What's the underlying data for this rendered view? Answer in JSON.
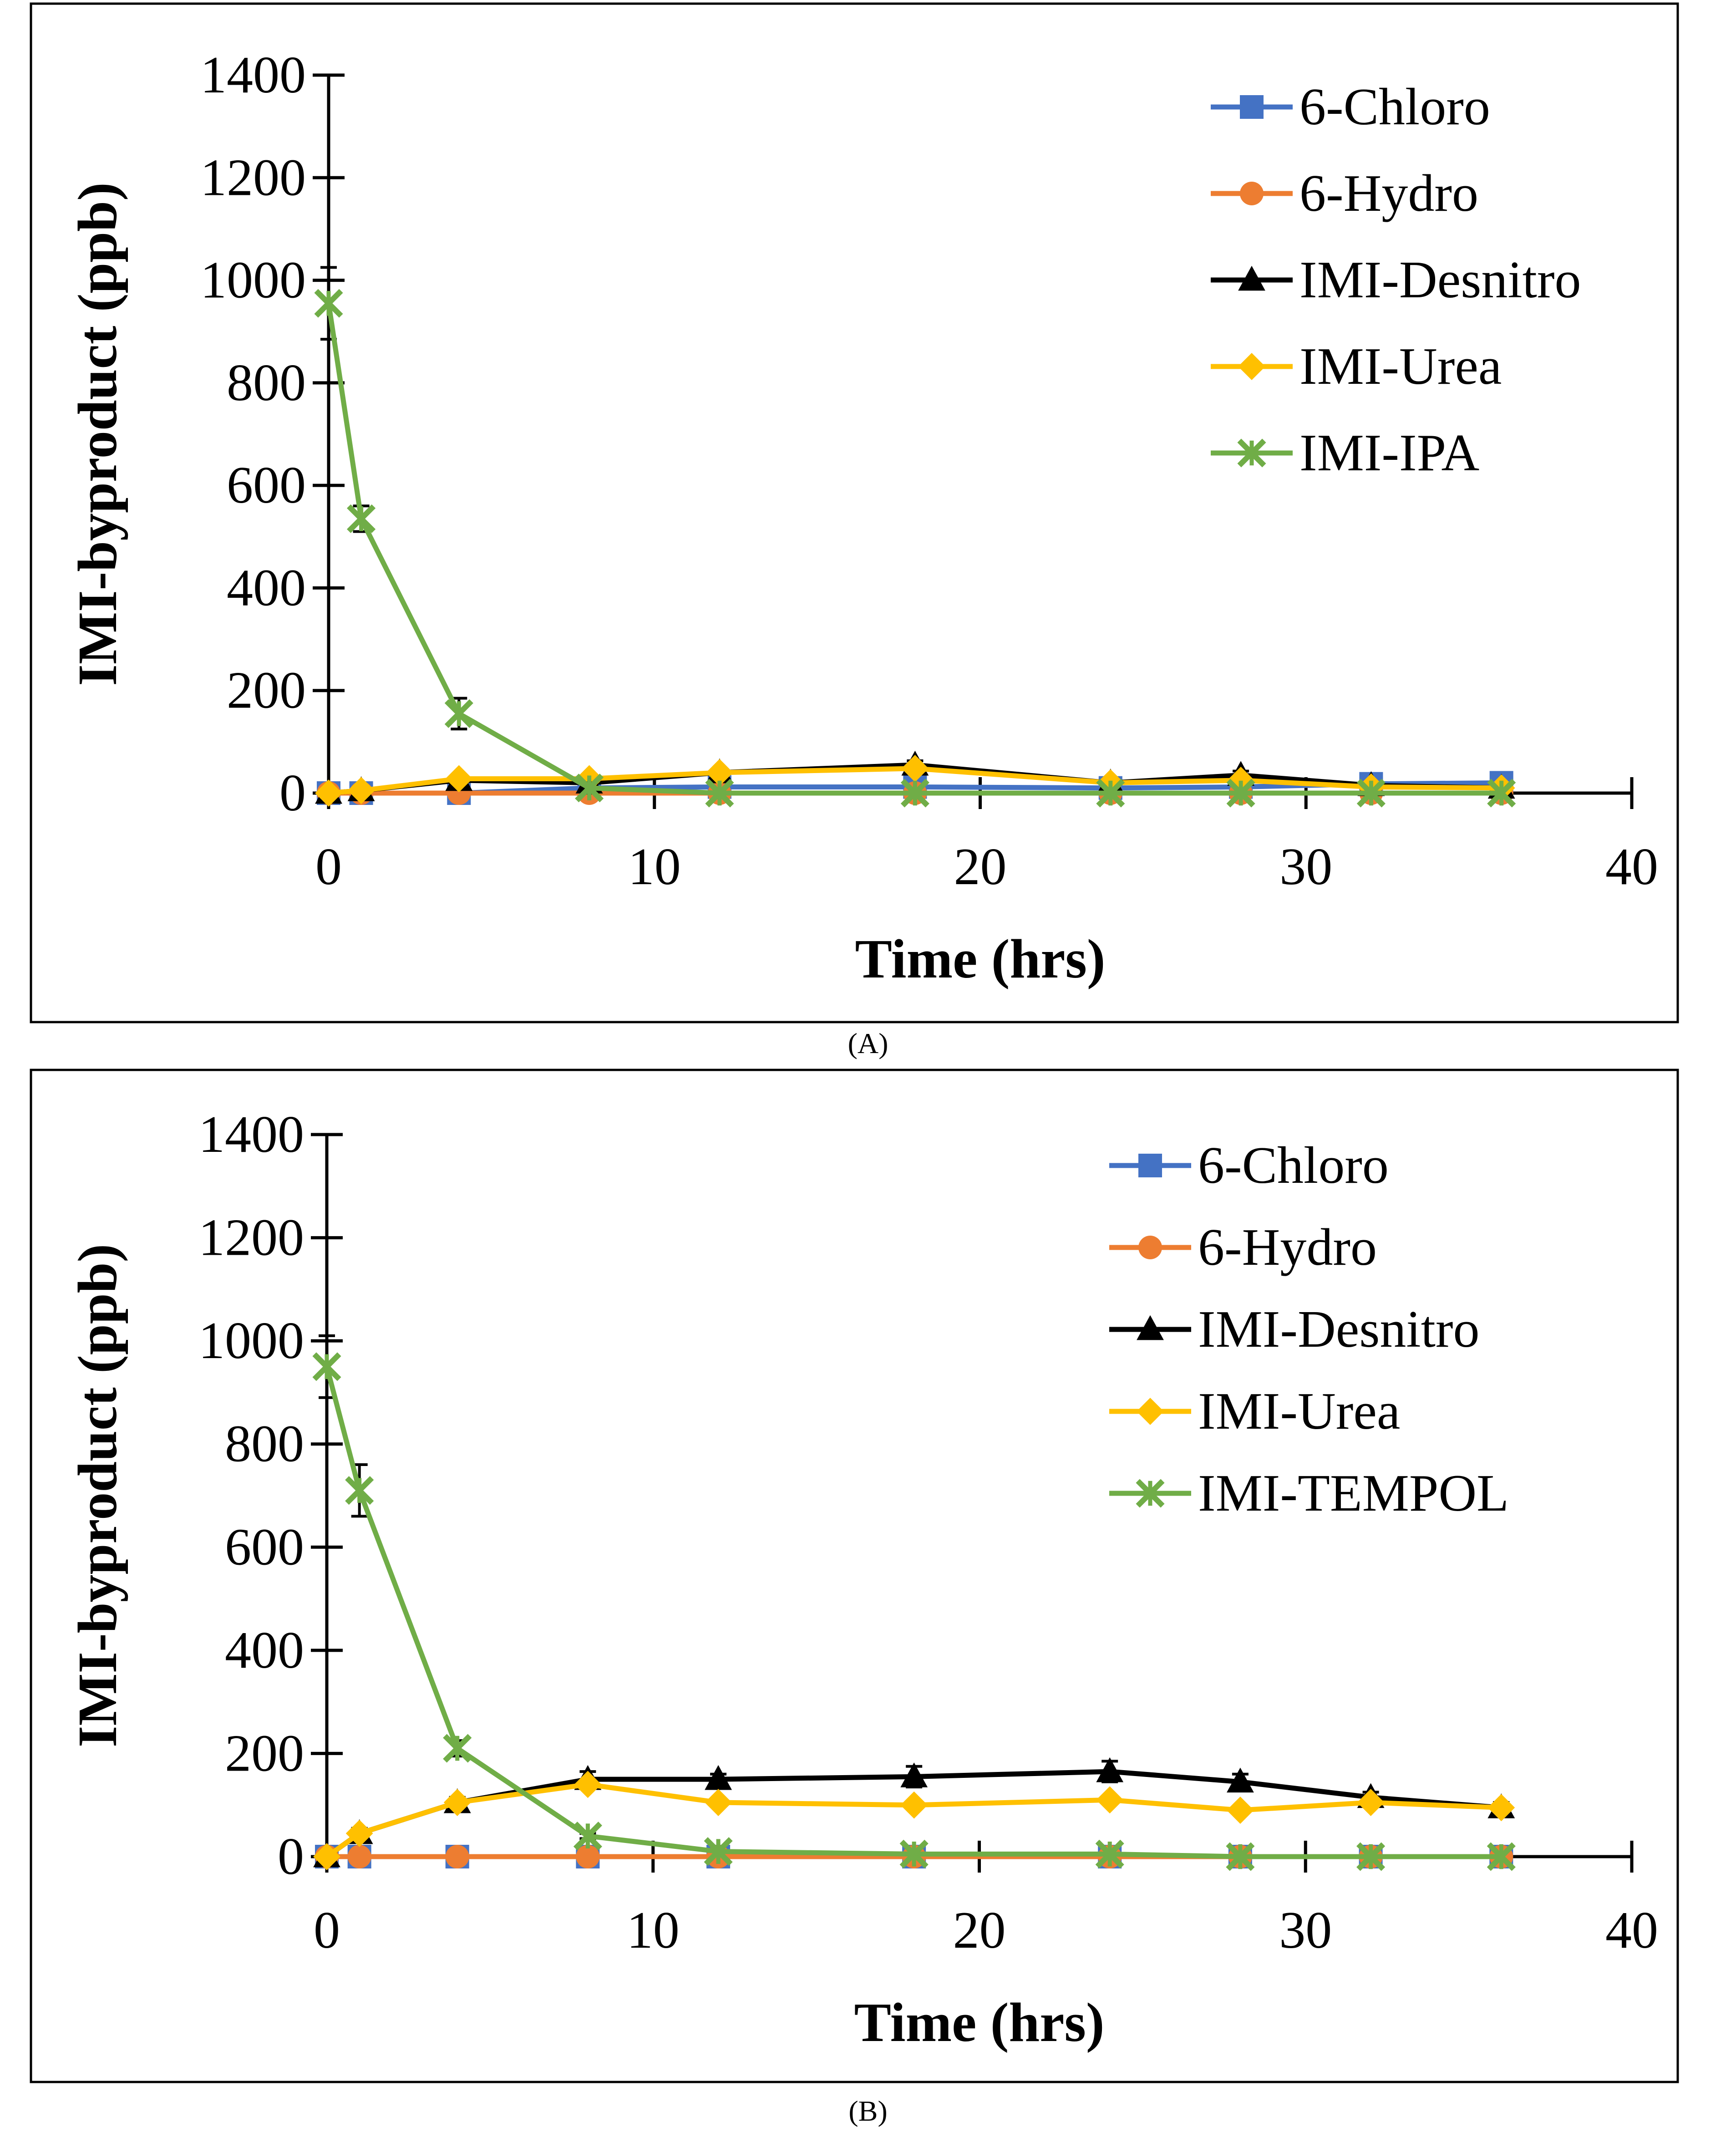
{
  "chart_data": [
    {
      "type": "line",
      "panel_label": "(A)",
      "xlabel": "Time (hrs)",
      "ylabel": "IMI-byproduct (ppb)",
      "xlim": [
        0,
        40
      ],
      "ylim": [
        0,
        1400
      ],
      "xticks": [
        "0",
        "10",
        "20",
        "30",
        "40"
      ],
      "yticks": [
        "0",
        "200",
        "400",
        "600",
        "800",
        "1000",
        "1200",
        "1400"
      ],
      "legend_position": "top-right",
      "grid": false,
      "x": [
        0,
        1,
        4,
        8,
        12,
        18,
        24,
        28,
        32,
        36
      ],
      "series": [
        {
          "name": "6-Chloro",
          "color": "#4472C4",
          "marker": "square",
          "values": [
            0,
            0,
            0,
            10,
            12,
            12,
            10,
            12,
            18,
            20
          ],
          "error": [
            0,
            0,
            0,
            0,
            0,
            0,
            0,
            0,
            0,
            0
          ]
        },
        {
          "name": "6-Hydro",
          "color": "#ED7D31",
          "marker": "circle",
          "values": [
            0,
            0,
            0,
            0,
            0,
            0,
            0,
            0,
            0,
            0
          ],
          "error": [
            0,
            0,
            0,
            0,
            0,
            0,
            0,
            0,
            0,
            0
          ]
        },
        {
          "name": "IMI-Desnitro",
          "color": "#000000",
          "marker": "triangle",
          "values": [
            0,
            5,
            25,
            20,
            40,
            55,
            20,
            35,
            15,
            10
          ],
          "error": [
            0,
            0,
            5,
            5,
            5,
            8,
            5,
            8,
            5,
            5
          ]
        },
        {
          "name": "IMI-Urea",
          "color": "#FFC000",
          "marker": "diamond",
          "values": [
            0,
            5,
            28,
            28,
            40,
            48,
            20,
            25,
            12,
            10
          ],
          "error": [
            0,
            0,
            0,
            0,
            0,
            0,
            0,
            0,
            0,
            0
          ]
        },
        {
          "name": "IMI-IPA",
          "color": "#70AD47",
          "marker": "x",
          "values": [
            955,
            535,
            155,
            10,
            0,
            0,
            0,
            0,
            0,
            0
          ],
          "error": [
            70,
            25,
            30,
            10,
            0,
            0,
            0,
            0,
            0,
            0
          ]
        }
      ]
    },
    {
      "type": "line",
      "panel_label": "(B)",
      "xlabel": "Time (hrs)",
      "ylabel": "IMI-byproduct (ppb)",
      "xlim": [
        0,
        40
      ],
      "ylim": [
        0,
        1400
      ],
      "xticks": [
        "0",
        "10",
        "20",
        "30",
        "40"
      ],
      "yticks": [
        "0",
        "200",
        "400",
        "600",
        "800",
        "1000",
        "1200",
        "1400"
      ],
      "legend_position": "top-right",
      "grid": false,
      "x": [
        0,
        1,
        4,
        8,
        12,
        18,
        24,
        28,
        32,
        36
      ],
      "series": [
        {
          "name": "6-Chloro",
          "color": "#4472C4",
          "marker": "square",
          "values": [
            0,
            0,
            0,
            0,
            0,
            0,
            0,
            0,
            0,
            0
          ],
          "error": [
            0,
            0,
            0,
            0,
            0,
            0,
            0,
            0,
            0,
            0
          ]
        },
        {
          "name": "6-Hydro",
          "color": "#ED7D31",
          "marker": "circle",
          "values": [
            0,
            0,
            0,
            0,
            0,
            0,
            0,
            0,
            0,
            0
          ],
          "error": [
            0,
            0,
            0,
            0,
            0,
            0,
            0,
            0,
            0,
            0
          ]
        },
        {
          "name": "IMI-Desnitro",
          "color": "#000000",
          "marker": "triangle",
          "values": [
            0,
            45,
            105,
            150,
            150,
            155,
            165,
            145,
            115,
            95
          ],
          "error": [
            0,
            10,
            10,
            15,
            10,
            20,
            20,
            15,
            10,
            10
          ]
        },
        {
          "name": "IMI-Urea",
          "color": "#FFC000",
          "marker": "diamond",
          "values": [
            0,
            45,
            105,
            140,
            105,
            100,
            110,
            90,
            105,
            95
          ],
          "error": [
            0,
            0,
            0,
            0,
            0,
            0,
            0,
            0,
            0,
            0
          ]
        },
        {
          "name": "IMI-TEMPOL",
          "color": "#70AD47",
          "marker": "x",
          "values": [
            950,
            710,
            210,
            40,
            10,
            5,
            5,
            0,
            0,
            0
          ],
          "error": [
            60,
            50,
            15,
            5,
            0,
            0,
            0,
            0,
            0,
            0
          ]
        }
      ]
    }
  ]
}
